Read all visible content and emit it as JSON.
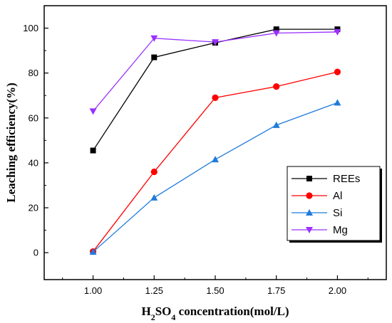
{
  "chart_data": {
    "type": "line",
    "x": [
      1.0,
      1.25,
      1.5,
      1.75,
      2.0
    ],
    "x_tick_labels": [
      "1.00",
      "1.25",
      "1.50",
      "1.75",
      "2.00"
    ],
    "xlim": [
      0.8,
      2.2
    ],
    "ylim": [
      -12,
      110
    ],
    "y_ticks": [
      0,
      20,
      40,
      60,
      80,
      100
    ],
    "xlabel_parts": {
      "pre": "H",
      "sub1": "2",
      "mid": "SO",
      "sub2": "4",
      "post": " concentration(mol/L)"
    },
    "ylabel": "Leaching efficiency(%)",
    "legend_position": "lower-right",
    "grid": false,
    "series": [
      {
        "name": "REEs",
        "marker": "square",
        "color": "#000000",
        "values": [
          45.5,
          87.0,
          93.5,
          99.5,
          99.5
        ]
      },
      {
        "name": "Al",
        "marker": "circle",
        "color": "#ff0000",
        "values": [
          0.5,
          36.0,
          69.0,
          74.0,
          80.5
        ]
      },
      {
        "name": "Si",
        "marker": "triangle-up",
        "color": "#1f7bdc",
        "values": [
          0.3,
          24.5,
          41.5,
          56.8,
          66.8
        ]
      },
      {
        "name": "Mg",
        "marker": "triangle-down",
        "color": "#9b30ff",
        "values": [
          63.0,
          95.5,
          93.8,
          97.8,
          98.3
        ]
      }
    ]
  }
}
